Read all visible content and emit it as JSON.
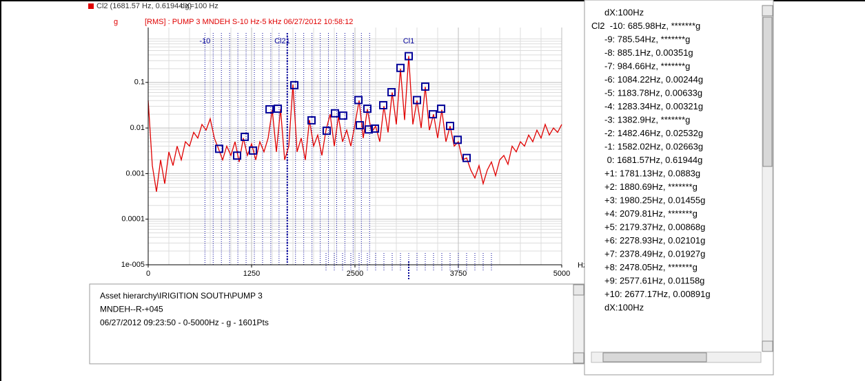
{
  "chart_data": {
    "type": "line",
    "cursor_readout": "Cl2 (1681.57 Hz, 0.61944 g)",
    "cursor_dx": "dX=100 Hz",
    "y_unit": "g",
    "subtitle": "[RMS] : PUMP 3 MNDEH S-10 Hz-5 kHz 06/27/2012 10:58:12",
    "xlabel": "Hz",
    "color": "#e00000",
    "log_y": true,
    "grid": true,
    "xlim": [
      0,
      5000
    ],
    "ylim": [
      1e-05,
      1.6
    ],
    "xticks": [
      0,
      1250,
      2500,
      3750,
      5000
    ],
    "yticks": [
      {
        "value": 1e-05,
        "label": "1e-005"
      },
      0.0001,
      0.001,
      0.01,
      0.1
    ],
    "xminorticks": [
      250,
      500,
      750,
      1000,
      1500,
      1750,
      2000,
      2250,
      2750,
      3000,
      3250,
      3500,
      4000,
      4250,
      4500,
      4750
    ],
    "yminorticks": [
      2e-05,
      3e-05,
      4e-05,
      5e-05,
      6e-05,
      7e-05,
      8e-05,
      9e-05,
      0.0002,
      0.0003,
      0.0004,
      0.0005,
      0.0006,
      0.0007,
      0.0008,
      0.0009,
      0.002,
      0.003,
      0.004,
      0.005,
      0.006,
      0.007,
      0.008,
      0.009,
      0.02,
      0.03,
      0.04,
      0.05,
      0.06,
      0.07,
      0.08,
      0.09,
      0.2,
      0.3,
      0.4,
      0.5,
      0.6,
      0.7,
      0.8,
      0.9
    ],
    "x": [
      0,
      50,
      100,
      150,
      200,
      250,
      300,
      350,
      400,
      450,
      500,
      550,
      600,
      650,
      700,
      750,
      800,
      850,
      900,
      950,
      1000,
      1050,
      1100,
      1150,
      1200,
      1250,
      1300,
      1350,
      1400,
      1450,
      1500,
      1550,
      1600,
      1650,
      1700,
      1750,
      1800,
      1850,
      1900,
      1950,
      2000,
      2050,
      2100,
      2150,
      2200,
      2250,
      2300,
      2350,
      2400,
      2450,
      2500,
      2550,
      2600,
      2650,
      2700,
      2750,
      2800,
      2850,
      2900,
      2950,
      3000,
      3050,
      3100,
      3150,
      3200,
      3250,
      3300,
      3350,
      3400,
      3450,
      3500,
      3550,
      3600,
      3650,
      3700,
      3750,
      3800,
      3850,
      3900,
      3950,
      4000,
      4050,
      4100,
      4150,
      4200,
      4250,
      4300,
      4350,
      4400,
      4450,
      4500,
      4550,
      4600,
      4650,
      4700,
      4750,
      4800,
      4850,
      4900,
      4950,
      5000
    ],
    "values": [
      0.04,
      0.0015,
      0.0004,
      0.002,
      0.0006,
      0.003,
      0.0015,
      0.004,
      0.002,
      0.005,
      0.004,
      0.008,
      0.006,
      0.012,
      0.009,
      0.016,
      0.006,
      0.0035,
      0.002,
      0.004,
      0.0025,
      0.005,
      0.0018,
      0.006,
      0.0025,
      0.0045,
      0.002,
      0.005,
      0.003,
      0.006,
      0.025,
      0.003,
      0.026,
      0.002,
      0.004,
      0.09,
      0.003,
      0.006,
      0.002,
      0.015,
      0.004,
      0.007,
      0.0025,
      0.009,
      0.02,
      0.004,
      0.018,
      0.005,
      0.009,
      0.004,
      0.012,
      0.04,
      0.006,
      0.026,
      0.008,
      0.011,
      0.005,
      0.03,
      0.008,
      0.06,
      0.012,
      0.2,
      0.015,
      0.38,
      0.012,
      0.04,
      0.01,
      0.08,
      0.009,
      0.02,
      0.006,
      0.025,
      0.005,
      0.011,
      0.004,
      0.005,
      0.002,
      0.0022,
      0.0012,
      0.0008,
      0.0015,
      0.0006,
      0.0012,
      0.0018,
      0.0009,
      0.002,
      0.0025,
      0.0016,
      0.004,
      0.003,
      0.005,
      0.004,
      0.007,
      0.005,
      0.009,
      0.006,
      0.012,
      0.007,
      0.01,
      0.008,
      0.012
    ],
    "markers": {
      "color": "#000099",
      "x": [
        858,
        1075,
        1167,
        1267,
        1467,
        1567,
        1767,
        1975,
        2158,
        2258,
        2358,
        2542,
        2650,
        2558,
        2667,
        2742,
        2842,
        2942,
        3050,
        3150,
        3250,
        3350,
        3442,
        3542,
        3650,
        3742,
        3850
      ],
      "values": [
        0.0035,
        0.00248,
        0.0064,
        0.0032,
        0.0257,
        0.0265,
        0.087,
        0.0147,
        0.0087,
        0.021,
        0.0187,
        0.041,
        0.0265,
        0.0115,
        0.0093,
        0.0097,
        0.0316,
        0.061,
        0.208,
        0.377,
        0.041,
        0.081,
        0.02,
        0.0265,
        0.0111,
        0.0055,
        0.0022
      ]
    },
    "cursor_color": "#000099",
    "cl2_cursors": [
      685.98,
      785.54,
      885.1,
      984.66,
      1084.22,
      1183.78,
      1283.34,
      1382.9,
      1482.46,
      1582.02,
      1681.57,
      1781.13,
      1880.69,
      1980.25,
      2079.81,
      2179.37,
      2278.93,
      2378.49,
      2478.05,
      2577.61,
      2677.17
    ],
    "cl2_center": 1681.57,
    "cl1_cursors": [
      2150,
      2250,
      2350,
      2450,
      2550,
      2650,
      2750,
      2850,
      2950,
      3050,
      3150,
      3250,
      3350,
      3450,
      3550,
      3650,
      3750,
      3850,
      3950,
      4050,
      4150
    ],
    "cl1_center": 3150,
    "cursor_labels": [
      "-10",
      "Cl21",
      "Cl1"
    ],
    "cursor_label_x": [
      685.98,
      1620,
      3150
    ]
  },
  "info_panel": {
    "lines": [
      "Asset hierarchy\\IRIGITION SOUTH\\PUMP 3",
      "MNDEH--R-+045",
      "06/27/2012 09:23:50 - 0-5000Hz - g - 1601Pts"
    ]
  },
  "harmonic_list": {
    "rows": [
      "dX:100Hz",
      "Cl2  -10: 685.98Hz, *******g",
      "-9: 785.54Hz, *******g",
      "-8: 885.1Hz, 0.00351g",
      "-7: 984.66Hz, *******g",
      "-6: 1084.22Hz, 0.00244g",
      "-5: 1183.78Hz, 0.00633g",
      "-4: 1283.34Hz, 0.00321g",
      "-3: 1382.9Hz, *******g",
      "-2: 1482.46Hz, 0.02532g",
      "-1: 1582.02Hz, 0.02663g",
      " 0: 1681.57Hz, 0.61944g",
      "+1: 1781.13Hz, 0.0883g",
      "+2: 1880.69Hz, *******g",
      "+3: 1980.25Hz, 0.01455g",
      "+4: 2079.81Hz, *******g",
      "+5: 2179.37Hz, 0.00868g",
      "+6: 2278.93Hz, 0.02101g",
      "+7: 2378.49Hz, 0.01927g",
      "+8: 2478.05Hz, *******g",
      "+9: 2577.61Hz, 0.01158g",
      "+10: 2677.17Hz, 0.00891g",
      "dX:100Hz"
    ]
  }
}
